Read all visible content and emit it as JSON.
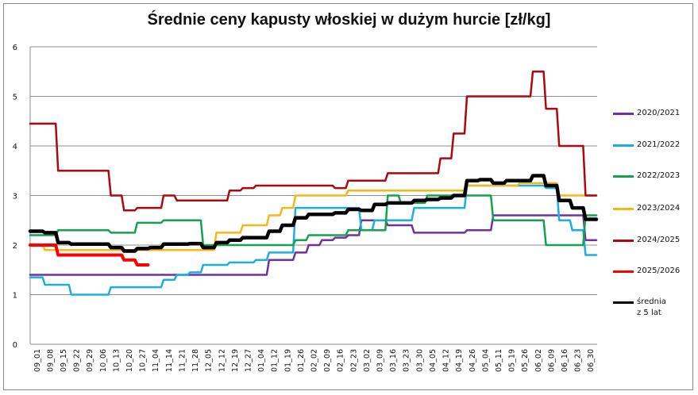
{
  "chart_data": {
    "type": "line",
    "title": "Średnie ceny kapusty włoskiej w dużym hurcie [zł/kg]",
    "xlabel": "",
    "ylabel": "",
    "ylim": [
      0,
      6
    ],
    "yticks": [
      0,
      1,
      2,
      3,
      4,
      5,
      6
    ],
    "grid": true,
    "legend_position": "right",
    "categories": [
      "09_01",
      "09_08",
      "09_15",
      "09_22",
      "09_29",
      "10_06",
      "10_13",
      "10_20",
      "10_27",
      "11_04",
      "11_14",
      "11_21",
      "11_28",
      "12_05",
      "12_12",
      "12_19",
      "12_27",
      "01_04",
      "01_12",
      "01_19",
      "01_26",
      "02_02",
      "02_09",
      "02_16",
      "02_23",
      "03_02",
      "03_09",
      "03_16",
      "03_23",
      "03_30",
      "04_05",
      "04_12",
      "04_19",
      "04_26",
      "05_04",
      "05_11",
      "05_19",
      "05_26",
      "06_02",
      "06_09",
      "06_16",
      "06_23",
      "06_30"
    ],
    "series": [
      {
        "name": "2020/2021",
        "color": "#7030A0",
        "width": 2.5,
        "values": [
          1.4,
          1.4,
          1.4,
          1.4,
          1.4,
          1.4,
          1.4,
          1.4,
          1.4,
          1.4,
          1.4,
          1.4,
          1.4,
          1.4,
          1.4,
          1.4,
          1.4,
          1.4,
          1.7,
          1.7,
          1.85,
          2.0,
          2.1,
          2.15,
          2.2,
          2.5,
          2.5,
          2.4,
          2.4,
          2.25,
          2.25,
          2.25,
          2.25,
          2.3,
          2.3,
          2.6,
          2.6,
          2.6,
          2.6,
          2.6,
          2.6,
          2.6,
          2.1
        ]
      },
      {
        "name": "2021/2022",
        "color": "#1AAFE3",
        "width": 2.5,
        "values": [
          1.35,
          1.2,
          1.2,
          1.0,
          1.0,
          1.0,
          1.15,
          1.15,
          1.15,
          1.15,
          1.3,
          1.4,
          1.45,
          1.6,
          1.6,
          1.65,
          1.65,
          1.7,
          1.85,
          1.85,
          2.75,
          2.75,
          2.75,
          2.75,
          2.75,
          2.3,
          2.5,
          2.5,
          2.5,
          2.75,
          2.75,
          2.75,
          2.75,
          3.2,
          3.2,
          3.2,
          3.2,
          3.2,
          3.2,
          3.15,
          2.5,
          2.3,
          1.8
        ]
      },
      {
        "name": "2022/2023",
        "color": "#13A24D",
        "width": 2.5,
        "values": [
          2.2,
          2.2,
          2.3,
          2.3,
          2.3,
          2.3,
          2.25,
          2.25,
          2.45,
          2.45,
          2.5,
          2.5,
          2.5,
          2.0,
          2.0,
          2.0,
          2.0,
          2.0,
          2.0,
          2.0,
          2.1,
          2.2,
          2.2,
          2.2,
          2.3,
          2.3,
          2.3,
          3.0,
          2.85,
          2.85,
          3.0,
          3.0,
          3.0,
          3.0,
          3.0,
          2.5,
          2.5,
          2.5,
          2.5,
          2.0,
          2.0,
          2.0,
          2.6
        ]
      },
      {
        "name": "2023/2024",
        "color": "#F5B915",
        "width": 2.5,
        "values": [
          2.0,
          1.9,
          1.9,
          1.9,
          1.9,
          1.9,
          1.9,
          1.9,
          1.9,
          1.9,
          1.9,
          1.9,
          1.9,
          1.9,
          2.25,
          2.25,
          2.4,
          2.4,
          2.6,
          2.75,
          3.0,
          3.0,
          3.0,
          3.0,
          3.1,
          3.1,
          3.1,
          3.1,
          3.1,
          3.1,
          3.1,
          3.1,
          3.1,
          3.2,
          3.2,
          3.2,
          3.2,
          3.25,
          3.25,
          3.25,
          3.0,
          3.0,
          3.0
        ]
      },
      {
        "name": "2024/2025",
        "color": "#B0060F",
        "width": 2.5,
        "values": [
          4.45,
          4.45,
          3.5,
          3.5,
          3.5,
          3.5,
          3.0,
          2.7,
          2.75,
          2.75,
          3.0,
          2.9,
          2.9,
          2.9,
          2.9,
          3.1,
          3.15,
          3.2,
          3.2,
          3.2,
          3.2,
          3.2,
          3.2,
          3.15,
          3.3,
          3.3,
          3.3,
          3.45,
          3.45,
          3.45,
          3.45,
          3.75,
          4.25,
          5.0,
          5.0,
          5.0,
          5.0,
          5.0,
          5.5,
          4.75,
          4.0,
          4.0,
          3.0
        ]
      },
      {
        "name": "2025/2026",
        "color": "#FF0000",
        "width": 4,
        "values": [
          2.0,
          2.0,
          1.8,
          1.8,
          1.8,
          1.8,
          1.8,
          1.7,
          1.6,
          null,
          null,
          null,
          null,
          null,
          null,
          null,
          null,
          null,
          null,
          null,
          null,
          null,
          null,
          null,
          null,
          null,
          null,
          null,
          null,
          null,
          null,
          null,
          null,
          null,
          null,
          null,
          null,
          null,
          null,
          null,
          null,
          null,
          null
        ]
      },
      {
        "name": "średnia\nz 5 lat",
        "color": "#000000",
        "width": 4.5,
        "values": [
          2.28,
          2.25,
          2.05,
          2.02,
          2.02,
          2.02,
          1.95,
          1.88,
          1.93,
          1.95,
          2.02,
          2.02,
          2.03,
          1.95,
          2.05,
          2.1,
          2.15,
          2.15,
          2.28,
          2.4,
          2.55,
          2.62,
          2.62,
          2.65,
          2.72,
          2.7,
          2.82,
          2.85,
          2.85,
          2.9,
          2.92,
          2.95,
          3.0,
          3.3,
          3.32,
          3.25,
          3.3,
          3.3,
          3.4,
          3.2,
          2.9,
          2.75,
          2.52
        ]
      }
    ]
  },
  "legend": {
    "items": [
      {
        "label": "2020/2021"
      },
      {
        "label": "2021/2022"
      },
      {
        "label": "2022/2023"
      },
      {
        "label": "2023/2024"
      },
      {
        "label": "2024/2025"
      },
      {
        "label": "2025/2026"
      },
      {
        "label": "średnia\nz 5 lat"
      }
    ]
  }
}
